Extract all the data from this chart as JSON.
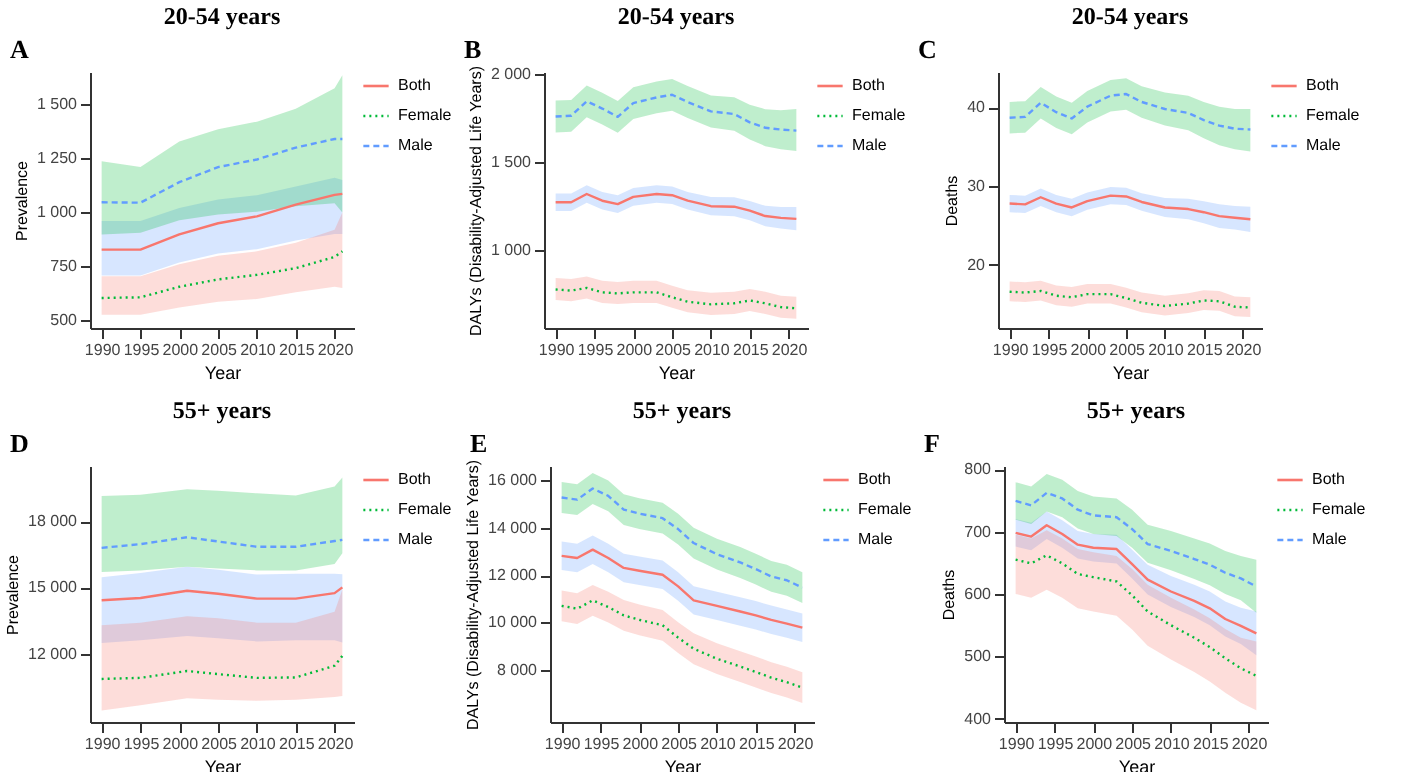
{
  "chart_data": [
    {
      "type": "line",
      "title": "20-54 years",
      "annotations": [
        "A"
      ],
      "xlabel": "Year",
      "ylabel": "Prevalence",
      "legend": "right",
      "x": [
        1990,
        1995,
        2000,
        2005,
        2010,
        2015,
        2020,
        2021
      ],
      "xlim": [
        1988.5,
        2022.5
      ],
      "xticks": [
        1990,
        1995,
        2000,
        2005,
        2010,
        2015,
        2020
      ],
      "ylim": [
        465,
        1650
      ],
      "yticks": [
        500,
        750,
        {
          "value": 1000,
          "label": "1 000"
        },
        {
          "value": 1250,
          "label": "1 250"
        },
        {
          "value": 1500,
          "label": "1 500"
        }
      ],
      "series": [
        {
          "name": "Both",
          "color": "#f8766d",
          "line_style": "solid",
          "values": [
            828,
            828,
            898,
            950,
            982,
            1036,
            1081,
            1086
          ],
          "lower": [
            708,
            708,
            768,
            810,
            830,
            870,
            900,
            900
          ],
          "upper": [
            960,
            960,
            1020,
            1060,
            1080,
            1120,
            1160,
            1150
          ]
        },
        {
          "name": "Female",
          "color": "#00ba38",
          "line_style": "dotted",
          "values": [
            604,
            607,
            656,
            690,
            711,
            742,
            794,
            820
          ],
          "lower": [
            526,
            526,
            560,
            586,
            599,
            630,
            656,
            650
          ],
          "upper": [
            705,
            705,
            760,
            800,
            820,
            860,
            920,
            1000
          ]
        },
        {
          "name": "Male",
          "color": "#619cff",
          "line_style": "dashed",
          "values": [
            1047,
            1045,
            1140,
            1210,
            1245,
            1300,
            1340,
            1340
          ],
          "lower": [
            898,
            906,
            964,
            990,
            1003,
            1029,
            1042,
            1000
          ],
          "upper": [
            1237,
            1210,
            1328,
            1385,
            1420,
            1480,
            1575,
            1635
          ]
        }
      ]
    },
    {
      "type": "line",
      "title": "20-54 years",
      "annotations": [
        "B"
      ],
      "xlabel": "Year",
      "ylabel": "DALYs (Disability-Adjusted Life Years)",
      "legend": "right",
      "x": [
        1990,
        1992,
        1994,
        1996,
        1998,
        2000,
        2003,
        2005,
        2007,
        2010,
        2013,
        2015,
        2017,
        2019,
        2021
      ],
      "xlim": [
        1988.5,
        2022.5
      ],
      "xticks": [
        1990,
        1995,
        2000,
        2005,
        2010,
        2015,
        2020
      ],
      "ylim": [
        560,
        2010
      ],
      "yticks": [
        {
          "value": 1000,
          "label": "1 000"
        },
        {
          "value": 1500,
          "label": "1 500"
        },
        {
          "value": 2000,
          "label": "2 000"
        }
      ],
      "series": [
        {
          "name": "Both",
          "color": "#f8766d",
          "line_style": "solid",
          "values": [
            1272,
            1272,
            1319,
            1281,
            1262,
            1303,
            1319,
            1312,
            1281,
            1250,
            1247,
            1225,
            1194,
            1184,
            1178
          ],
          "lower": [
            1222,
            1222,
            1269,
            1231,
            1212,
            1253,
            1269,
            1262,
            1231,
            1198,
            1193,
            1170,
            1136,
            1123,
            1113
          ],
          "upper": [
            1322,
            1322,
            1369,
            1331,
            1312,
            1353,
            1369,
            1362,
            1331,
            1302,
            1300,
            1280,
            1252,
            1245,
            1245
          ]
        },
        {
          "name": "Female",
          "color": "#00ba38",
          "line_style": "dotted",
          "values": [
            778,
            772,
            787,
            762,
            756,
            762,
            762,
            734,
            709,
            694,
            700,
            716,
            700,
            678,
            672
          ],
          "lower": [
            718,
            712,
            727,
            702,
            696,
            702,
            702,
            674,
            649,
            634,
            640,
            656,
            640,
            618,
            612
          ],
          "upper": [
            843,
            837,
            852,
            827,
            821,
            827,
            827,
            799,
            774,
            759,
            765,
            781,
            765,
            743,
            737
          ]
        },
        {
          "name": "Male",
          "color": "#619cff",
          "line_style": "dashed",
          "values": [
            1758,
            1762,
            1844,
            1803,
            1756,
            1834,
            1866,
            1881,
            1840,
            1787,
            1772,
            1725,
            1694,
            1684,
            1678
          ],
          "lower": [
            1668,
            1672,
            1754,
            1713,
            1666,
            1744,
            1776,
            1791,
            1750,
            1695,
            1677,
            1627,
            1590,
            1573,
            1563
          ],
          "upper": [
            1848,
            1852,
            1934,
            1893,
            1846,
            1924,
            1956,
            1971,
            1930,
            1877,
            1867,
            1825,
            1799,
            1794,
            1800
          ]
        }
      ]
    },
    {
      "type": "line",
      "title": "20-54 years",
      "annotations": [
        "C"
      ],
      "xlabel": "Year",
      "ylabel": "Deaths",
      "legend": "right",
      "x": [
        1990,
        1992,
        1994,
        1996,
        1998,
        2000,
        2003,
        2005,
        2007,
        2010,
        2013,
        2015,
        2017,
        2019,
        2021
      ],
      "xlim": [
        1988.5,
        2022.5
      ],
      "xticks": [
        1990,
        1995,
        2000,
        2005,
        2010,
        2015,
        2020
      ],
      "ylim": [
        12,
        44.5
      ],
      "yticks": [
        20,
        30,
        40
      ],
      "series": [
        {
          "name": "Both",
          "color": "#f8766d",
          "line_style": "solid",
          "values": [
            27.8,
            27.7,
            28.6,
            27.8,
            27.3,
            28.1,
            28.8,
            28.7,
            28.0,
            27.3,
            27.1,
            26.7,
            26.2,
            26.0,
            25.8
          ],
          "lower": [
            26.7,
            26.6,
            27.5,
            26.7,
            26.2,
            27.0,
            27.7,
            27.6,
            26.9,
            26.1,
            25.8,
            25.3,
            24.7,
            24.5,
            24.2
          ],
          "upper": [
            28.9,
            28.8,
            29.7,
            28.9,
            28.4,
            29.2,
            29.9,
            29.8,
            29.1,
            28.5,
            28.4,
            28.1,
            27.7,
            27.5,
            27.4
          ]
        },
        {
          "name": "Female",
          "color": "#00ba38",
          "line_style": "dotted",
          "values": [
            16.6,
            16.5,
            16.7,
            16.1,
            15.9,
            16.3,
            16.3,
            15.8,
            15.2,
            14.8,
            15.1,
            15.5,
            15.4,
            14.7,
            14.6
          ],
          "lower": [
            15.4,
            15.3,
            15.5,
            14.9,
            14.7,
            15.1,
            15.1,
            14.6,
            14.0,
            13.6,
            13.9,
            14.3,
            14.2,
            13.5,
            13.4
          ],
          "upper": [
            17.9,
            17.8,
            18.0,
            17.4,
            17.2,
            17.6,
            17.6,
            17.1,
            16.5,
            16.1,
            16.4,
            16.8,
            16.7,
            16.0,
            15.9
          ]
        },
        {
          "name": "Male",
          "color": "#619cff",
          "line_style": "dashed",
          "values": [
            38.7,
            38.8,
            40.6,
            39.4,
            38.6,
            40.1,
            41.5,
            41.7,
            40.7,
            39.8,
            39.3,
            38.4,
            37.7,
            37.3,
            37.2
          ],
          "lower": [
            36.7,
            36.8,
            38.6,
            37.4,
            36.6,
            38.1,
            39.5,
            39.7,
            38.7,
            37.7,
            37.1,
            36.1,
            35.2,
            34.7,
            34.4
          ],
          "upper": [
            40.7,
            40.8,
            42.6,
            41.4,
            40.6,
            42.1,
            43.5,
            43.7,
            42.7,
            41.9,
            41.5,
            40.7,
            40.1,
            39.8,
            39.8
          ]
        }
      ]
    },
    {
      "type": "line",
      "title": "55+ years",
      "annotations": [
        "D"
      ],
      "xlabel": "Year",
      "ylabel": "Prevalence",
      "legend": "right",
      "x": [
        1990,
        1995,
        2001,
        2005,
        2010,
        2015,
        2020,
        2021
      ],
      "xlim": [
        1988.5,
        2022.5
      ],
      "xticks": [
        1990,
        1995,
        2000,
        2005,
        2010,
        2015,
        2020
      ],
      "ylim": [
        8900,
        20500
      ],
      "yticks": [
        {
          "value": 12000,
          "label": "12 000"
        },
        {
          "value": 15000,
          "label": "15 000"
        },
        {
          "value": 18000,
          "label": "18 000"
        }
      ],
      "series": [
        {
          "name": "Both",
          "color": "#f8766d",
          "line_style": "solid",
          "values": [
            14420,
            14520,
            14850,
            14710,
            14490,
            14490,
            14740,
            15000
          ],
          "lower": [
            12480,
            12600,
            12800,
            12700,
            12550,
            12600,
            12600,
            12500
          ],
          "upper": [
            15460,
            15650,
            15940,
            15800,
            15580,
            15620,
            15620,
            15600
          ]
        },
        {
          "name": "Female",
          "color": "#00ba38",
          "line_style": "dotted",
          "values": [
            10850,
            10900,
            11210,
            11070,
            10900,
            10920,
            11450,
            11900
          ],
          "lower": [
            9420,
            9660,
            9980,
            9910,
            9860,
            9910,
            10030,
            10080
          ],
          "upper": [
            13280,
            13400,
            13690,
            13600,
            13400,
            13400,
            13900,
            14900
          ]
        },
        {
          "name": "Male",
          "color": "#619cff",
          "line_style": "dashed",
          "values": [
            16790,
            16960,
            17270,
            17080,
            16840,
            16840,
            17100,
            17150
          ],
          "lower": [
            15700,
            15770,
            15940,
            15850,
            15770,
            15770,
            16060,
            16550
          ],
          "upper": [
            19140,
            19200,
            19450,
            19380,
            19260,
            19160,
            19570,
            19980
          ]
        }
      ]
    },
    {
      "type": "line",
      "title": "55+ years",
      "annotations": [
        "E"
      ],
      "xlabel": "Year",
      "ylabel": "DALYs (Disability-Adjusted Life Years)",
      "legend": "right",
      "x": [
        1990,
        1992,
        1994,
        1996,
        1998,
        2000,
        2003,
        2005,
        2007,
        2010,
        2013,
        2015,
        2017,
        2019,
        2021
      ],
      "xlim": [
        1988.5,
        2022.5
      ],
      "xticks": [
        1990,
        1995,
        2000,
        2005,
        2010,
        2015,
        2020
      ],
      "ylim": [
        5800,
        16600
      ],
      "yticks": [
        {
          "value": 8000,
          "label": "8 000"
        },
        {
          "value": 10000,
          "label": "10 000"
        },
        {
          "value": 12000,
          "label": "12 000"
        },
        {
          "value": 14000,
          "label": "14 000"
        },
        {
          "value": 16000,
          "label": "16 000"
        }
      ],
      "series": [
        {
          "name": "Both",
          "color": "#f8766d",
          "line_style": "solid",
          "values": [
            12810,
            12720,
            13070,
            12720,
            12300,
            12180,
            12010,
            11520,
            10930,
            10700,
            10460,
            10300,
            10110,
            9950,
            9780
          ],
          "lower": [
            12210,
            12120,
            12470,
            12120,
            11700,
            11580,
            11410,
            10920,
            10330,
            10100,
            9860,
            9700,
            9510,
            9350,
            9180
          ],
          "upper": [
            13410,
            13320,
            13670,
            13320,
            12900,
            12780,
            12610,
            12120,
            11530,
            11300,
            11060,
            10900,
            10710,
            10550,
            10380
          ]
        },
        {
          "name": "Female",
          "color": "#00ba38",
          "line_style": "dotted",
          "values": [
            10700,
            10580,
            10930,
            10650,
            10300,
            10110,
            9880,
            9360,
            8890,
            8470,
            8140,
            7910,
            7670,
            7480,
            7250
          ],
          "lower": [
            10050,
            9930,
            10280,
            10000,
            9650,
            9460,
            9230,
            8710,
            8240,
            7820,
            7490,
            7260,
            7020,
            6830,
            6600
          ],
          "upper": [
            11350,
            11230,
            11580,
            11300,
            10950,
            10760,
            10530,
            10010,
            9540,
            9120,
            8790,
            8560,
            8320,
            8130,
            7900
          ]
        },
        {
          "name": "Male",
          "color": "#619cff",
          "line_style": "dashed",
          "values": [
            15270,
            15180,
            15650,
            15340,
            14760,
            14590,
            14400,
            13940,
            13350,
            12880,
            12530,
            12250,
            11940,
            11780,
            11470
          ],
          "lower": [
            14620,
            14530,
            15000,
            14690,
            14110,
            13940,
            13750,
            13290,
            12700,
            12230,
            11880,
            11600,
            11290,
            11130,
            10820
          ],
          "upper": [
            15920,
            15830,
            16300,
            15990,
            15410,
            15240,
            15050,
            14590,
            14000,
            13530,
            13180,
            12900,
            12590,
            12430,
            12120
          ]
        }
      ]
    },
    {
      "type": "line",
      "title": "55+ years",
      "annotations": [
        "F"
      ],
      "xlabel": "Year",
      "ylabel": "Deaths",
      "legend": "right",
      "x": [
        1990,
        1992,
        1994,
        1996,
        1998,
        2000,
        2003,
        2005,
        2007,
        2010,
        2013,
        2015,
        2017,
        2019,
        2021
      ],
      "xlim": [
        1988.5,
        2022.5
      ],
      "xticks": [
        1990,
        1995,
        2000,
        2005,
        2010,
        2015,
        2020
      ],
      "ylim": [
        395,
        805
      ],
      "yticks": [
        400,
        500,
        600,
        700,
        800
      ],
      "series": [
        {
          "name": "Both",
          "color": "#f8766d",
          "line_style": "solid",
          "values": [
            698,
            692,
            710,
            696,
            679,
            674,
            672,
            648,
            623,
            604,
            589,
            577,
            560,
            549,
            537
          ],
          "lower": [
            676,
            670,
            688,
            674,
            657,
            652,
            649,
            625,
            599,
            579,
            563,
            550,
            532,
            520,
            502
          ],
          "upper": [
            720,
            714,
            732,
            718,
            701,
            696,
            695,
            671,
            647,
            629,
            615,
            604,
            588,
            578,
            572
          ]
        },
        {
          "name": "Female",
          "color": "#00ba38",
          "line_style": "dotted",
          "values": [
            655,
            649,
            662,
            649,
            632,
            627,
            620,
            598,
            572,
            550,
            530,
            515,
            497,
            481,
            469
          ],
          "lower": [
            600,
            594,
            607,
            594,
            577,
            572,
            565,
            543,
            517,
            495,
            475,
            460,
            442,
            426,
            414
          ],
          "upper": [
            695,
            689,
            702,
            689,
            672,
            667,
            661,
            640,
            615,
            594,
            575,
            561,
            544,
            530,
            524
          ]
        },
        {
          "name": "Male",
          "color": "#619cff",
          "line_style": "dashed",
          "values": [
            749,
            742,
            762,
            753,
            735,
            726,
            723,
            704,
            680,
            669,
            656,
            647,
            634,
            625,
            612
          ],
          "lower": [
            719,
            712,
            732,
            723,
            705,
            696,
            693,
            674,
            650,
            638,
            624,
            614,
            600,
            590,
            570
          ],
          "upper": [
            779,
            772,
            792,
            783,
            765,
            756,
            753,
            735,
            711,
            701,
            689,
            681,
            669,
            661,
            655
          ]
        }
      ]
    }
  ]
}
